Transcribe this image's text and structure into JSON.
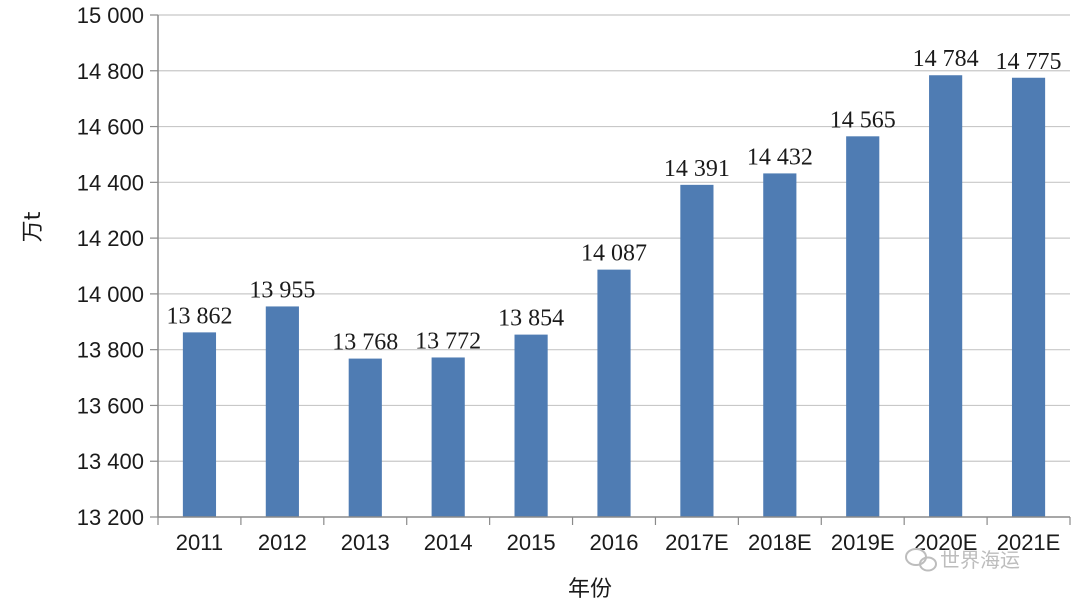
{
  "chart_data": {
    "type": "bar",
    "categories": [
      "2011",
      "2012",
      "2013",
      "2014",
      "2015",
      "2016",
      "2017E",
      "2018E",
      "2019E",
      "2020E",
      "2021E"
    ],
    "values": [
      13862,
      13955,
      13768,
      13772,
      13854,
      14087,
      14391,
      14432,
      14565,
      14784,
      14775
    ],
    "data_labels": [
      "13 862",
      "13 955",
      "13 768",
      "13 772",
      "13 854",
      "14 087",
      "14 391",
      "14 432",
      "14 565",
      "14 784",
      "14 775"
    ],
    "title": "",
    "xlabel": "年份",
    "ylabel": "万t",
    "ylim": [
      13200,
      15000
    ],
    "yticks": [
      13200,
      13400,
      13600,
      13800,
      14000,
      14200,
      14400,
      14600,
      14800,
      15000
    ],
    "ytick_labels": [
      "13 200",
      "13 400",
      "13 600",
      "13 800",
      "14 000",
      "14 200",
      "14 400",
      "14 600",
      "14 800",
      "15 000"
    ],
    "grid": true,
    "bar_color": "#4f7cb3",
    "grid_color": "#c8c8c8"
  },
  "watermark": {
    "icon": "wechat-icon",
    "text": "世界海运"
  }
}
